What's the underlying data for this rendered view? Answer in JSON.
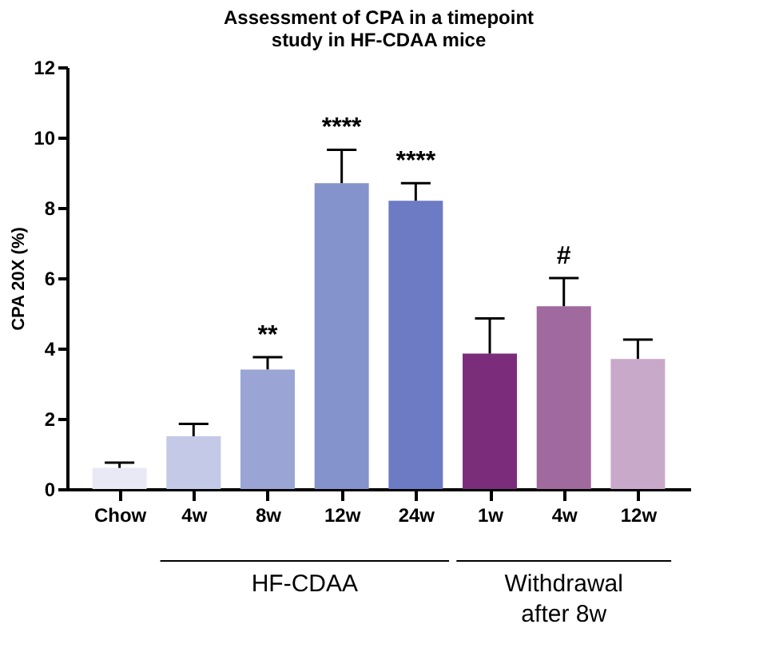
{
  "chart_data": {
    "type": "bar",
    "title": "Assessment of CPA in a timepoint study in HF-CDAA mice",
    "ylabel": "CPA 20X (%)",
    "categories": [
      "Chow",
      "4w",
      "8w",
      "12w",
      "24w",
      "1w",
      "4w",
      "12w"
    ],
    "values": [
      0.6,
      1.5,
      3.4,
      8.7,
      8.2,
      3.85,
      5.2,
      3.7
    ],
    "errors": [
      [
        0.6,
        0.75
      ],
      [
        1.5,
        1.85
      ],
      [
        3.4,
        3.75
      ],
      [
        8.7,
        9.65
      ],
      [
        8.2,
        8.7
      ],
      [
        3.85,
        4.85
      ],
      [
        5.2,
        6.0
      ],
      [
        3.7,
        4.25
      ]
    ],
    "colors": [
      "#e8e9f5",
      "#c3c9e6",
      "#9aa5d6",
      "#8593cc",
      "#6c7bc4",
      "#7b2d7b",
      "#a06a9e",
      "#c9a9c9"
    ],
    "ylim": [
      0,
      12
    ],
    "yticks": [
      0,
      2,
      4,
      6,
      8,
      10,
      12
    ],
    "grid": false,
    "annotations": [
      "**",
      "****",
      "****",
      "#",
      "HF-CDAA",
      "Withdrawal after 8w"
    ]
  }
}
